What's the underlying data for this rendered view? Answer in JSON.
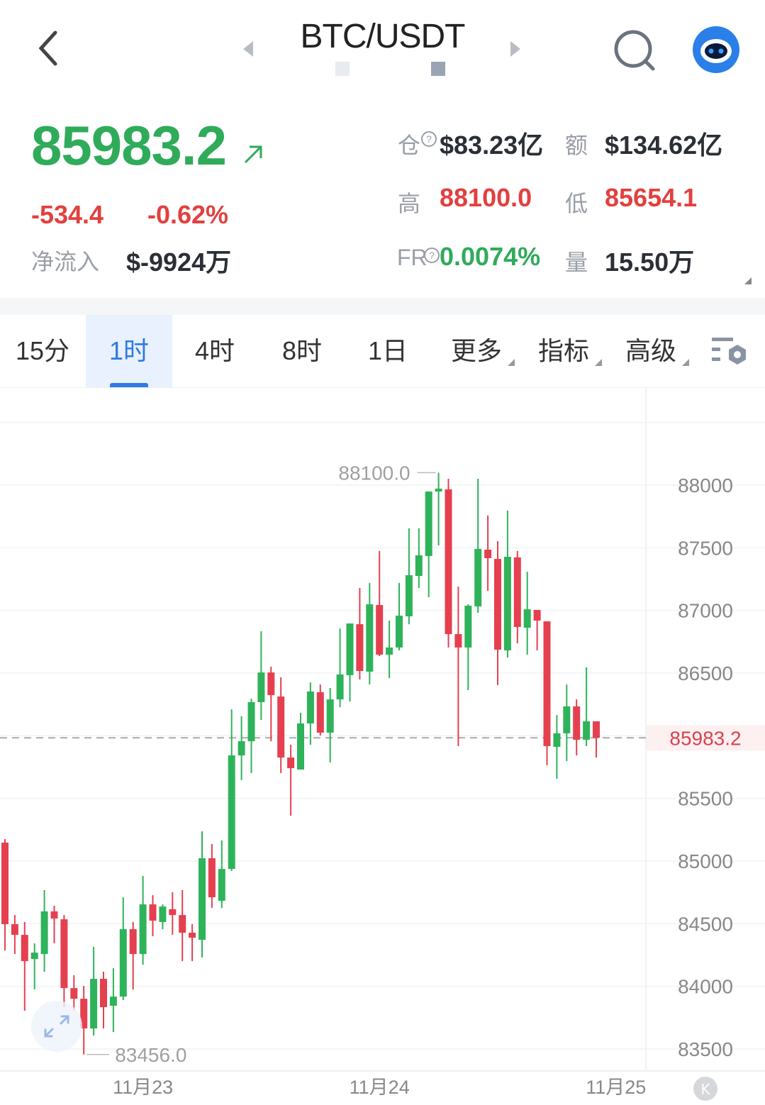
{
  "header": {
    "title": "BTC/USDT",
    "back_icon": "chevron-left-icon",
    "search_icon": "search-icon",
    "assistant_icon": "robot-avatar-icon"
  },
  "ticker": {
    "last_price": "85983.2",
    "trend_icon": "arrow-up-right-icon",
    "change": "-534.4",
    "change_pct": "-0.62%",
    "net_inflow_label": "净流入",
    "net_inflow": "$-9924万",
    "open_interest_label": "仓",
    "open_interest": "$83.23亿",
    "turnover_label": "额",
    "turnover": "$134.62亿",
    "high_label": "高",
    "high": "88100.0",
    "low_label": "低",
    "low": "85654.1",
    "funding_label": "FR",
    "funding": "0.0074%",
    "volume_label": "量",
    "volume": "15.50万"
  },
  "tabs": [
    {
      "label": "15分",
      "active": false
    },
    {
      "label": "1时",
      "active": true
    },
    {
      "label": "4时",
      "active": false
    },
    {
      "label": "8时",
      "active": false
    },
    {
      "label": "1日",
      "active": false
    },
    {
      "label": "更多",
      "active": false
    },
    {
      "label": "指标",
      "active": false
    },
    {
      "label": "高级",
      "active": false
    }
  ],
  "colors": {
    "up": "#2fb35a",
    "down": "#e5404f",
    "accent": "#2e7ae6"
  },
  "chart_data": {
    "type": "candlestick",
    "interval": "1时",
    "ylim": [
      83300,
      88900
    ],
    "yticks": [
      "88000",
      "87500",
      "87000",
      "86500",
      "86000",
      "85500",
      "85000",
      "84500",
      "84000",
      "83500"
    ],
    "ytick_values": [
      88000,
      87500,
      87000,
      86500,
      86000,
      85500,
      85000,
      84500,
      84000,
      83500
    ],
    "current_price_label": "85983.2",
    "current_price": 85983.2,
    "max_label": "88100.0",
    "min_label": "83456.0",
    "x_labels": [
      {
        "label": "11月23",
        "index": 14
      },
      {
        "label": "11月24",
        "index": 38
      },
      {
        "label": "11月25",
        "index": 62
      }
    ],
    "ohlc_fields": [
      "open",
      "high",
      "low",
      "close"
    ],
    "candles": [
      [
        85147,
        85175,
        84286,
        84496
      ],
      [
        84496,
        84569,
        84258,
        84411
      ],
      [
        84411,
        84513,
        83805,
        84201
      ],
      [
        84218,
        84343,
        83975,
        84269
      ],
      [
        84258,
        84768,
        84117,
        84598
      ],
      [
        84598,
        84643,
        84343,
        84541
      ],
      [
        84535,
        84569,
        83834,
        83986
      ],
      [
        83986,
        84088,
        83805,
        83901
      ],
      [
        83901,
        84003,
        83456,
        83664
      ],
      [
        83664,
        84315,
        83607,
        84060
      ],
      [
        84060,
        84117,
        83664,
        83834
      ],
      [
        83845,
        84145,
        83635,
        83918
      ],
      [
        83918,
        84711,
        83890,
        84456
      ],
      [
        84456,
        84513,
        83975,
        84258
      ],
      [
        84258,
        84881,
        84173,
        84654
      ],
      [
        84654,
        84728,
        84400,
        84524
      ],
      [
        84513,
        84654,
        84456,
        84637
      ],
      [
        84615,
        84751,
        84411,
        84569
      ],
      [
        84569,
        84768,
        84201,
        84428
      ],
      [
        84428,
        84496,
        84201,
        84388
      ],
      [
        84371,
        85237,
        84230,
        85022
      ],
      [
        85022,
        85136,
        84626,
        84711
      ],
      [
        84683,
        85164,
        84626,
        84937
      ],
      [
        84937,
        86211,
        84920,
        85843
      ],
      [
        85843,
        86155,
        85645,
        85956
      ],
      [
        85956,
        86296,
        85702,
        86268
      ],
      [
        86268,
        86834,
        86126,
        86505
      ],
      [
        86505,
        86551,
        85956,
        86324
      ],
      [
        86313,
        86466,
        85702,
        85826
      ],
      [
        85826,
        85928,
        85362,
        85741
      ],
      [
        85730,
        86183,
        85730,
        86098
      ],
      [
        86098,
        86426,
        85928,
        86353
      ],
      [
        86347,
        86409,
        86002,
        86024
      ],
      [
        86024,
        86381,
        85787,
        86290
      ],
      [
        86290,
        86856,
        86228,
        86489
      ],
      [
        86483,
        86896,
        86273,
        86896
      ],
      [
        86890,
        87179,
        86449,
        86517
      ],
      [
        86511,
        87219,
        86409,
        87049
      ],
      [
        87043,
        87474,
        86636,
        86647
      ],
      [
        86647,
        86919,
        86460,
        86704
      ],
      [
        86704,
        87219,
        86681,
        86958
      ],
      [
        86953,
        87655,
        86890,
        87281
      ],
      [
        87275,
        87655,
        87179,
        87440
      ],
      [
        87434,
        87949,
        87106,
        87949
      ],
      [
        87949,
        88100,
        87519,
        87972
      ],
      [
        87966,
        88051,
        86704,
        86811
      ],
      [
        86811,
        87190,
        85917,
        86704
      ],
      [
        86704,
        87049,
        86364,
        87038
      ],
      [
        87032,
        88051,
        86981,
        87491
      ],
      [
        87485,
        87757,
        87156,
        87417
      ],
      [
        87411,
        87553,
        86404,
        86687
      ],
      [
        86681,
        87796,
        86624,
        87428
      ],
      [
        87423,
        87474,
        86738,
        86868
      ],
      [
        86862,
        87309,
        86647,
        87009
      ],
      [
        87004,
        87004,
        86681,
        86919
      ],
      [
        86913,
        86913,
        85764,
        85917
      ],
      [
        85911,
        86166,
        85656,
        86019
      ],
      [
        86019,
        86409,
        85798,
        86234
      ],
      [
        86234,
        86290,
        85843,
        85968
      ],
      [
        85968,
        86545,
        85917,
        86115
      ],
      [
        86115,
        86115,
        85826,
        85983.2
      ]
    ]
  }
}
